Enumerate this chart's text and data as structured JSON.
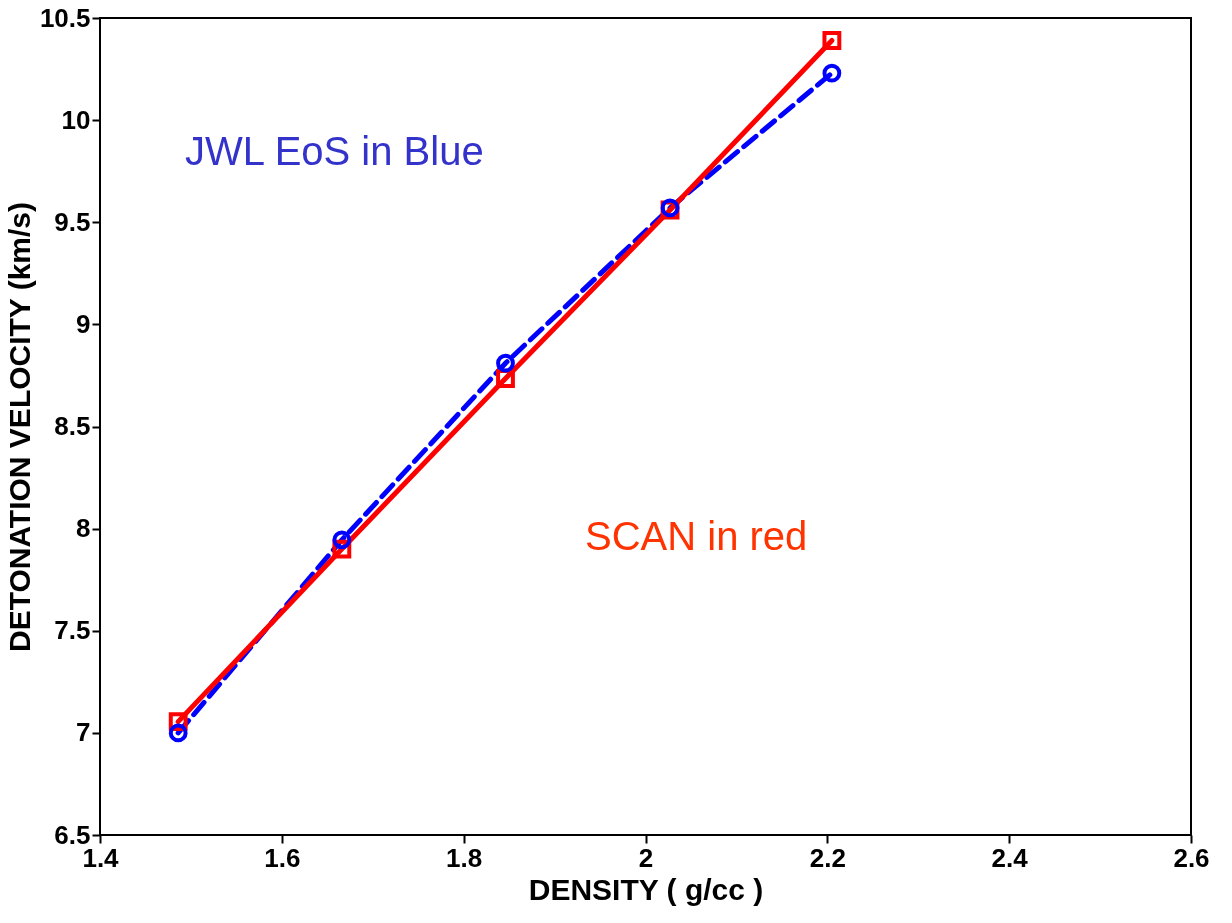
{
  "chart_data": {
    "type": "line",
    "xlabel": "DENSITY ( g/cc )",
    "ylabel": "DETONATION  VELOCITY  (km/s)",
    "xlim": [
      1.4,
      2.6
    ],
    "xticks": [
      1.4,
      1.6,
      1.8,
      2,
      2.2,
      2.4,
      2.6
    ],
    "ylim": [
      6.5,
      10.5
    ],
    "yticks": [
      6.5,
      7,
      7.5,
      8,
      8.5,
      9,
      9.5,
      10,
      10.5
    ],
    "grid": false,
    "annotations": [
      "JWL EoS in Blue",
      "SCAN in red"
    ],
    "series": [
      {
        "color": "#0000ff",
        "marker": "circle",
        "line_style": "dashed",
        "x": [
          1.486,
          1.666,
          1.846,
          2.027,
          2.205
        ],
        "values": [
          7.0,
          7.945,
          8.81,
          9.57,
          10.23
        ]
      },
      {
        "color": "#ff0000",
        "marker": "square",
        "line_style": "solid",
        "x": [
          1.486,
          1.666,
          1.846,
          2.027,
          2.205
        ],
        "values": [
          7.055,
          7.9,
          8.735,
          9.56,
          10.39
        ]
      }
    ]
  }
}
